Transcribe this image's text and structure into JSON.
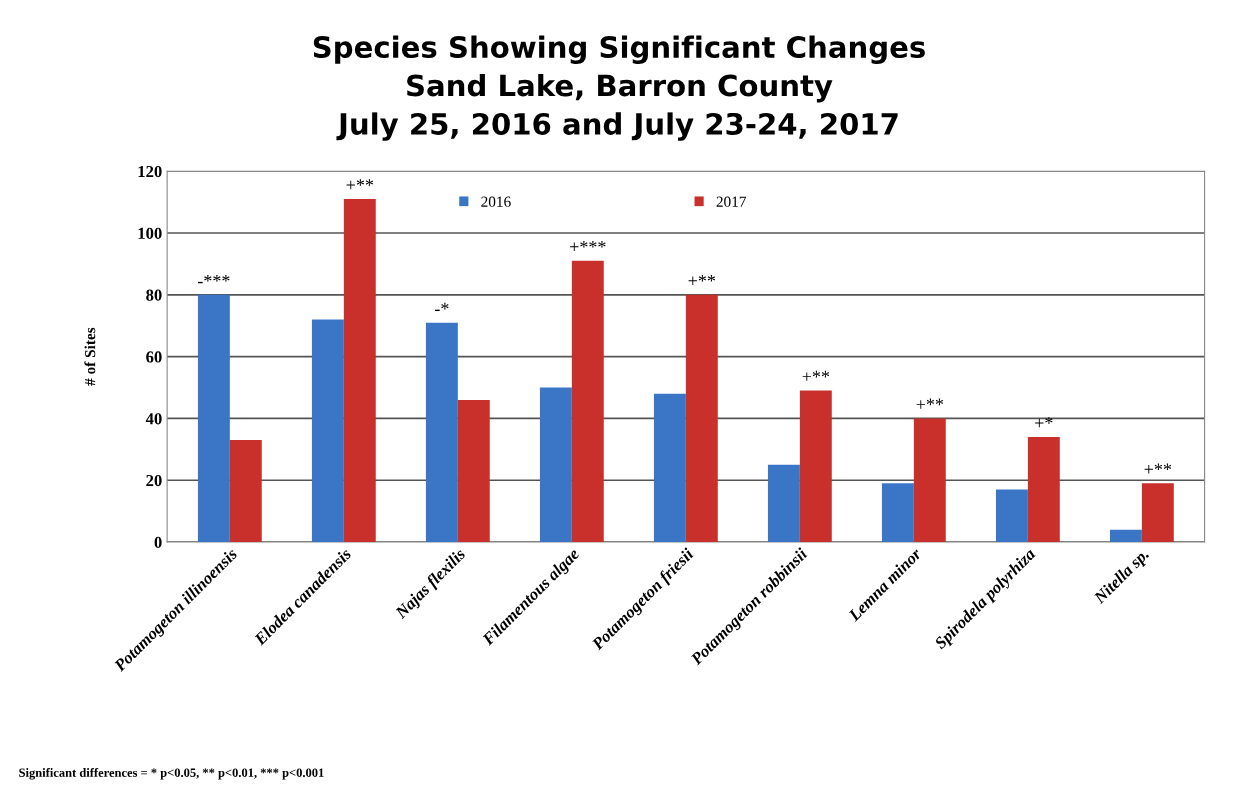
{
  "chart_data": {
    "type": "bar",
    "title": "Species Showing Significant Changes\nSand Lake, Barron County\nJuly 25, 2016 and July 23-24, 2017",
    "ylabel": "# of Sites",
    "categories": [
      "Potamogeton illinoensis",
      "Elodea canadensis",
      "Najas flexilis",
      "Filamentous algae",
      "Potamogeton friesii",
      "Potamogeton robbinsii",
      "Lemna minor",
      "Spirodela polyrhiza",
      "Nitella sp."
    ],
    "series": [
      {
        "name": "2016",
        "color": "#3b76c6",
        "values": [
          80,
          72,
          71,
          50,
          48,
          25,
          19,
          17,
          4
        ]
      },
      {
        "name": "2017",
        "color": "#c9302c",
        "values": [
          33,
          111,
          46,
          91,
          80,
          49,
          40,
          34,
          19
        ]
      }
    ],
    "ylim": [
      0,
      120
    ],
    "yticks": [
      0,
      20,
      40,
      60,
      80,
      100,
      120
    ],
    "grid": "y",
    "legend": "top",
    "annotations": [
      {
        "text": "-***",
        "x": "Potamogeton illinoensis",
        "y": 80
      },
      {
        "text": "+**",
        "x": "Elodea canadensis",
        "y": 111
      },
      {
        "text": "-*",
        "x": "Najas flexilis",
        "y": 71
      },
      {
        "text": "+***",
        "x": "Filamentous algae",
        "y": 91
      },
      {
        "text": "+**",
        "x": "Potamogeton friesii",
        "y": 80
      },
      {
        "text": "+**",
        "x": "Potamogeton robbinsii",
        "y": 49
      },
      {
        "text": "+**",
        "x": "Lemna minor",
        "y": 40
      },
      {
        "text": "+*",
        "x": "Spirodela polyrhiza",
        "y": 34
      },
      {
        "text": "+**",
        "x": "Nitella sp.",
        "y": 19
      },
      "Significant differences = * p<0.05, ** p<0.01, *** p<0.001"
    ]
  }
}
